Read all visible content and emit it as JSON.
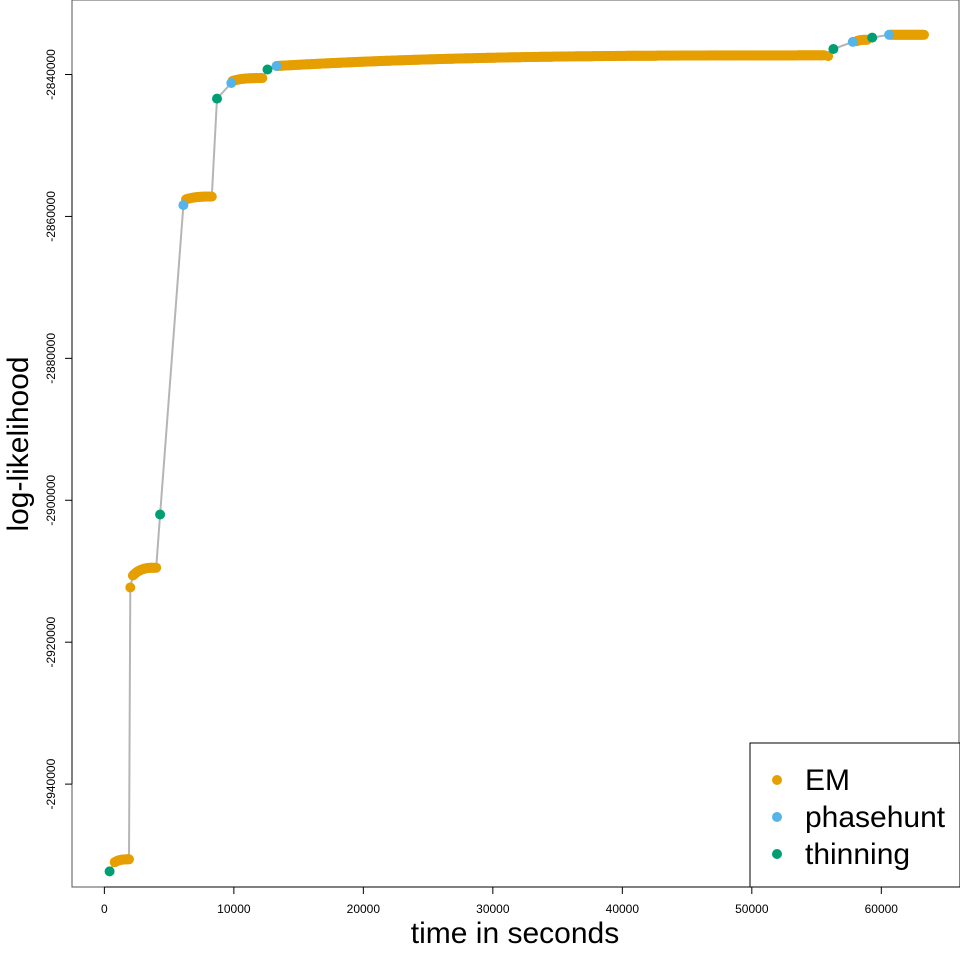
{
  "chart_data": {
    "type": "scatter",
    "xlabel": "time in seconds",
    "ylabel": "log-likelihood",
    "xlim": [
      -2500,
      66000
    ],
    "ylim": [
      -2954500,
      -2829500
    ],
    "x_ticks": [
      0,
      10000,
      20000,
      30000,
      40000,
      50000,
      60000
    ],
    "x_tick_labels": [
      "0",
      "10000",
      "20000",
      "30000",
      "40000",
      "50000",
      "60000"
    ],
    "y_ticks": [
      -2940000,
      -2920000,
      -2900000,
      -2880000,
      -2860000,
      -2840000
    ],
    "y_tick_labels": [
      "-2940000",
      "-2920000",
      "-2900000",
      "-2880000",
      "-2860000",
      "-2840000"
    ],
    "grid": false,
    "legend_position": "bottom-right",
    "connecting_line_color": "#b5b5b5",
    "series": [
      {
        "name": "EM",
        "color": "#E69F00",
        "segments": [
          {
            "x_start": 800,
            "x_end": 1900,
            "y_start": -2951000,
            "y_end": -2950600
          },
          {
            "x_start": 2200,
            "x_end": 4000,
            "y_start": -2910600,
            "y_end": -2909500
          },
          {
            "x_start": 6300,
            "x_end": 8300,
            "y_start": -2857600,
            "y_end": -2857200
          },
          {
            "x_start": 9900,
            "x_end": 12200,
            "y_start": -2840900,
            "y_end": -2840500
          },
          {
            "x_start": 13300,
            "x_end": 55600,
            "y_start": -2838800,
            "y_end": -2837300
          },
          {
            "x_start": 58100,
            "x_end": 58900,
            "y_start": -2835300,
            "y_end": -2835100
          },
          {
            "x_start": 60700,
            "x_end": 63300,
            "y_start": -2834400,
            "y_end": -2834400
          }
        ],
        "points": [
          {
            "x": 2000,
            "y": -2912300
          },
          {
            "x": 55900,
            "y": -2837400
          }
        ]
      },
      {
        "name": "phasehunt",
        "color": "#56B4E9",
        "points": [
          {
            "x": 6100,
            "y": -2858400
          },
          {
            "x": 9800,
            "y": -2841200
          },
          {
            "x": 13300,
            "y": -2838800
          },
          {
            "x": 57800,
            "y": -2835400
          },
          {
            "x": 60600,
            "y": -2834400
          }
        ]
      },
      {
        "name": "thinning",
        "color": "#009E73",
        "points": [
          {
            "x": 400,
            "y": -2952300
          },
          {
            "x": 4300,
            "y": -2902000
          },
          {
            "x": 8700,
            "y": -2843400
          },
          {
            "x": 12600,
            "y": -2839300
          },
          {
            "x": 56300,
            "y": -2836400
          },
          {
            "x": 59300,
            "y": -2834800
          }
        ]
      }
    ]
  }
}
